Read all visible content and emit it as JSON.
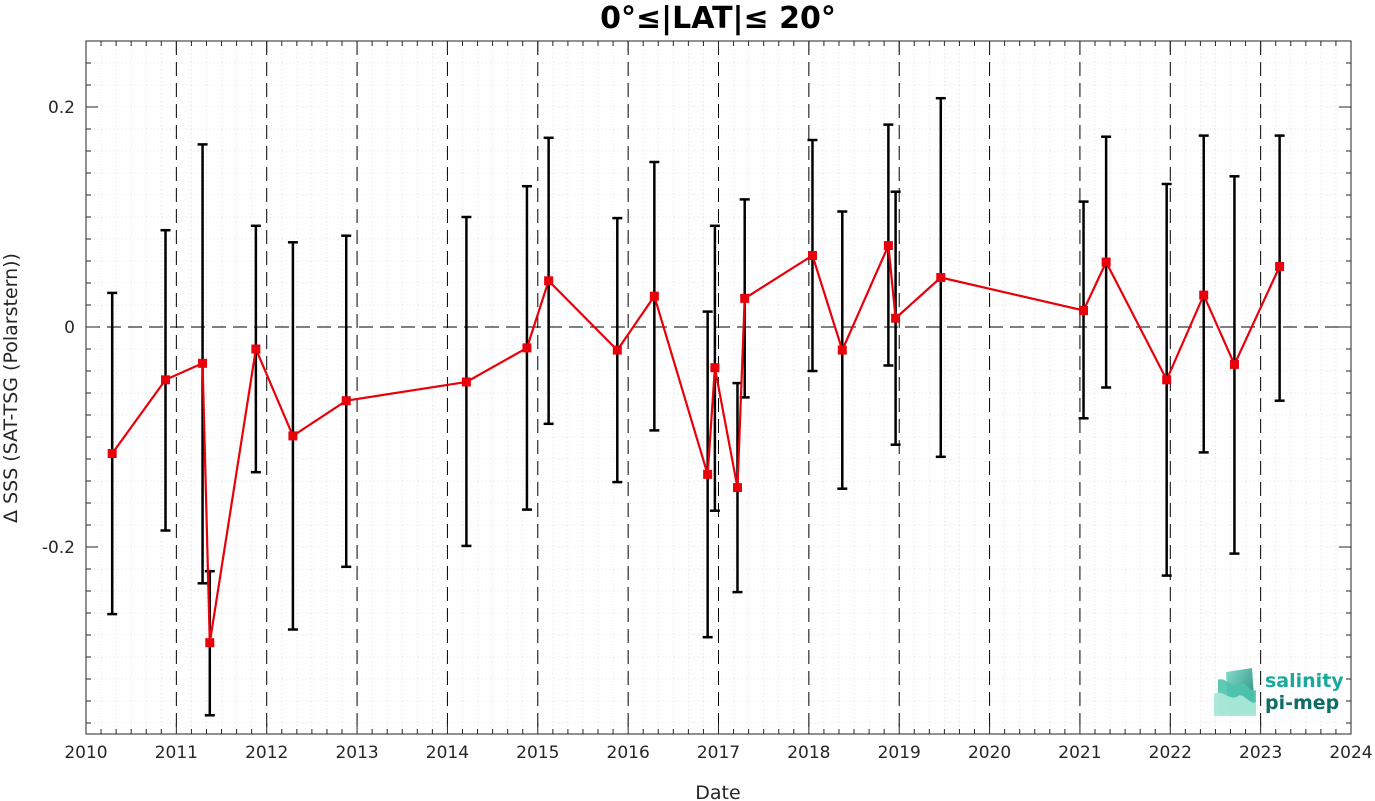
{
  "chart_data": {
    "type": "line",
    "title": "0°≤|LAT|≤ 20°",
    "xlabel": "Date",
    "ylabel": "Δ SSS (SAT-TSG (Polarstern))",
    "xlim": [
      2010,
      2024
    ],
    "ylim": [
      -0.37,
      0.26
    ],
    "x_ticks": [
      2010,
      2011,
      2012,
      2013,
      2014,
      2015,
      2016,
      2017,
      2018,
      2019,
      2020,
      2021,
      2022,
      2023,
      2024
    ],
    "x_tick_labels": [
      "2010",
      "2011",
      "2012",
      "2013",
      "2014",
      "2015",
      "2016",
      "2017",
      "2018",
      "2019",
      "2020",
      "2021",
      "2022",
      "2023",
      "2024"
    ],
    "y_ticks": [
      -0.2,
      0,
      0.2
    ],
    "y_tick_labels": [
      "-0.2",
      "0",
      "0.2"
    ],
    "grid": true,
    "zero_line": true,
    "year_boundary_lines": true,
    "series": [
      {
        "color": "#e8000b",
        "errorbar_color": "#000000",
        "marker": "square",
        "points": [
          {
            "x": 2010.29,
            "y": -0.115,
            "lo": -0.261,
            "hi": 0.031
          },
          {
            "x": 2010.88,
            "y": -0.048,
            "lo": -0.185,
            "hi": 0.088
          },
          {
            "x": 2011.29,
            "y": -0.033,
            "lo": -0.233,
            "hi": 0.166
          },
          {
            "x": 2011.37,
            "y": -0.287,
            "lo": -0.353,
            "hi": -0.222
          },
          {
            "x": 2011.88,
            "y": -0.02,
            "lo": -0.132,
            "hi": 0.092
          },
          {
            "x": 2012.29,
            "y": -0.099,
            "lo": -0.275,
            "hi": 0.077
          },
          {
            "x": 2012.88,
            "y": -0.067,
            "lo": -0.218,
            "hi": 0.083
          },
          {
            "x": 2014.21,
            "y": -0.05,
            "lo": -0.199,
            "hi": 0.1
          },
          {
            "x": 2014.88,
            "y": -0.019,
            "lo": -0.166,
            "hi": 0.128
          },
          {
            "x": 2015.12,
            "y": 0.042,
            "lo": -0.088,
            "hi": 0.172
          },
          {
            "x": 2015.88,
            "y": -0.021,
            "lo": -0.141,
            "hi": 0.099
          },
          {
            "x": 2016.29,
            "y": 0.028,
            "lo": -0.094,
            "hi": 0.15
          },
          {
            "x": 2016.88,
            "y": -0.134,
            "lo": -0.282,
            "hi": 0.014
          },
          {
            "x": 2016.96,
            "y": -0.037,
            "lo": -0.167,
            "hi": 0.092
          },
          {
            "x": 2017.21,
            "y": -0.146,
            "lo": -0.241,
            "hi": -0.051
          },
          {
            "x": 2017.29,
            "y": 0.026,
            "lo": -0.064,
            "hi": 0.116
          },
          {
            "x": 2018.04,
            "y": 0.065,
            "lo": -0.04,
            "hi": 0.17
          },
          {
            "x": 2018.37,
            "y": -0.021,
            "lo": -0.147,
            "hi": 0.105
          },
          {
            "x": 2018.88,
            "y": 0.074,
            "lo": -0.035,
            "hi": 0.184
          },
          {
            "x": 2018.96,
            "y": 0.008,
            "lo": -0.107,
            "hi": 0.123
          },
          {
            "x": 2019.46,
            "y": 0.045,
            "lo": -0.118,
            "hi": 0.208
          },
          {
            "x": 2021.04,
            "y": 0.015,
            "lo": -0.083,
            "hi": 0.114
          },
          {
            "x": 2021.29,
            "y": 0.059,
            "lo": -0.055,
            "hi": 0.173
          },
          {
            "x": 2021.96,
            "y": -0.048,
            "lo": -0.226,
            "hi": 0.13
          },
          {
            "x": 2022.37,
            "y": 0.029,
            "lo": -0.114,
            "hi": 0.174
          },
          {
            "x": 2022.71,
            "y": -0.034,
            "lo": -0.206,
            "hi": 0.137
          },
          {
            "x": 2023.21,
            "y": 0.055,
            "lo": -0.067,
            "hi": 0.174
          }
        ]
      }
    ]
  },
  "logo": {
    "line1": "salinity",
    "line2": "pi-mep",
    "color1": "#1aa99a",
    "color2": "#0e6e66"
  }
}
